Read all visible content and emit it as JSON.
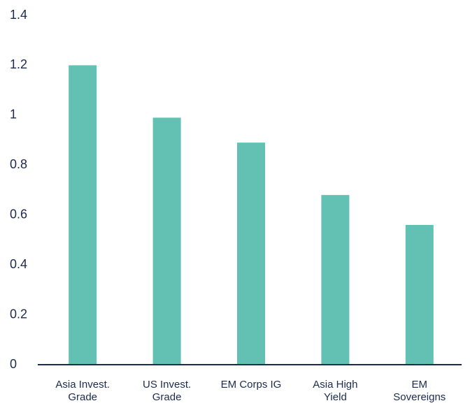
{
  "chart_data": {
    "type": "bar",
    "categories": [
      "Asia Invest. Grade",
      "US Invest. Grade",
      "EM Corps IG",
      "Asia High Yield",
      "EM Sovereigns"
    ],
    "values": [
      1.2,
      0.99,
      0.89,
      0.68,
      0.56
    ],
    "color": "#62c1b2",
    "ylim": [
      0,
      1.4
    ],
    "yticks": [
      0,
      0.2,
      0.4,
      0.6,
      0.8,
      1,
      1.2,
      1.4
    ],
    "grid": false
  }
}
